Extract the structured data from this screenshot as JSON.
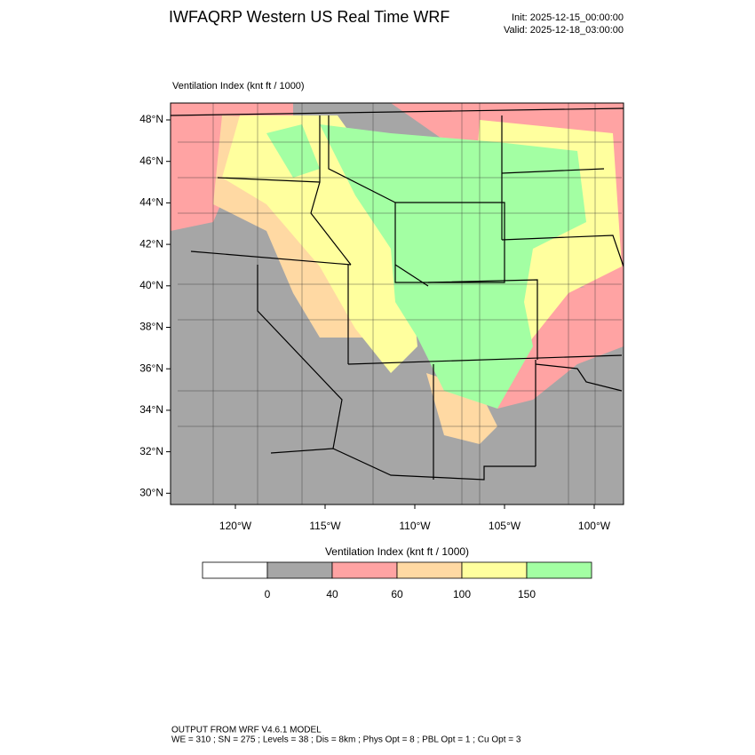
{
  "header": {
    "title": "IWFAQRP Western US Real Time WRF",
    "init": "Init: 2025-12-15_00:00:00",
    "valid": "Valid: 2025-12-18_03:00:00"
  },
  "map": {
    "title": "Ventilation Index   (knt ft / 1000)",
    "lat_labels": [
      "48°N",
      "46°N",
      "44°N",
      "42°N",
      "40°N",
      "38°N",
      "36°N",
      "34°N",
      "32°N",
      "30°N"
    ],
    "lon_labels": [
      "120°W",
      "115°W",
      "110°W",
      "105°W",
      "100°W"
    ]
  },
  "colorbar": {
    "title": "Ventilation Index   (knt ft / 1000)",
    "colors": [
      "#ffffff",
      "#a6a6a6",
      "#ffa3a3",
      "#ffd9a3",
      "#ffff9e",
      "#a3ffa3"
    ],
    "labels": [
      "0",
      "40",
      "60",
      "100",
      "150"
    ]
  },
  "footer": {
    "line1": "OUTPUT FROM WRF V4.6.1 MODEL",
    "line2": "WE = 310 ; SN = 275 ; Levels = 38 ; Dis = 8km ; Phys Opt = 8 ; PBL Opt = 1 ; Cu Opt = 3"
  }
}
